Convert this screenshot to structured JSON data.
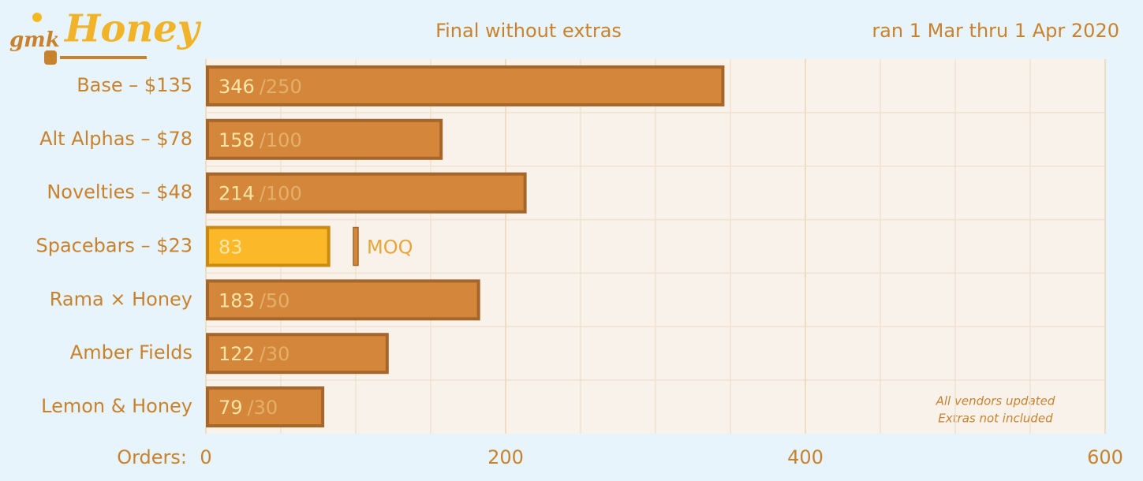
{
  "chart_data": {
    "type": "bar",
    "brand": "gmk",
    "brand_name": "Honey",
    "title": "Final without extras",
    "subtitle": "ran 1 Mar thru 1 Apr 2020",
    "x_label": "Orders:",
    "categories": [
      "Base – $135",
      "Alt Alphas – $78",
      "Novelties – $48",
      "Spacebars – $23",
      "Rama × Honey",
      "Amber Fields",
      "Lemon & Honey"
    ],
    "values": [
      346,
      158,
      214,
      83,
      183,
      122,
      79
    ],
    "moq": [
      250,
      100,
      100,
      100,
      50,
      30,
      30
    ],
    "moq_labels": [
      "/250",
      "/100",
      "/100",
      null,
      "/50",
      "/30",
      "/30"
    ],
    "moq_annotation": "MOQ",
    "color": "#d4863a",
    "unmet_color": "#fbb829",
    "xlim": [
      0,
      600
    ],
    "xticks": [
      0,
      200,
      400,
      600
    ],
    "xminorticks": [
      50,
      100,
      150,
      250,
      300,
      350,
      450,
      500,
      550
    ],
    "grid": true,
    "notes": [
      "All vendors updated",
      "Extras not included"
    ]
  }
}
